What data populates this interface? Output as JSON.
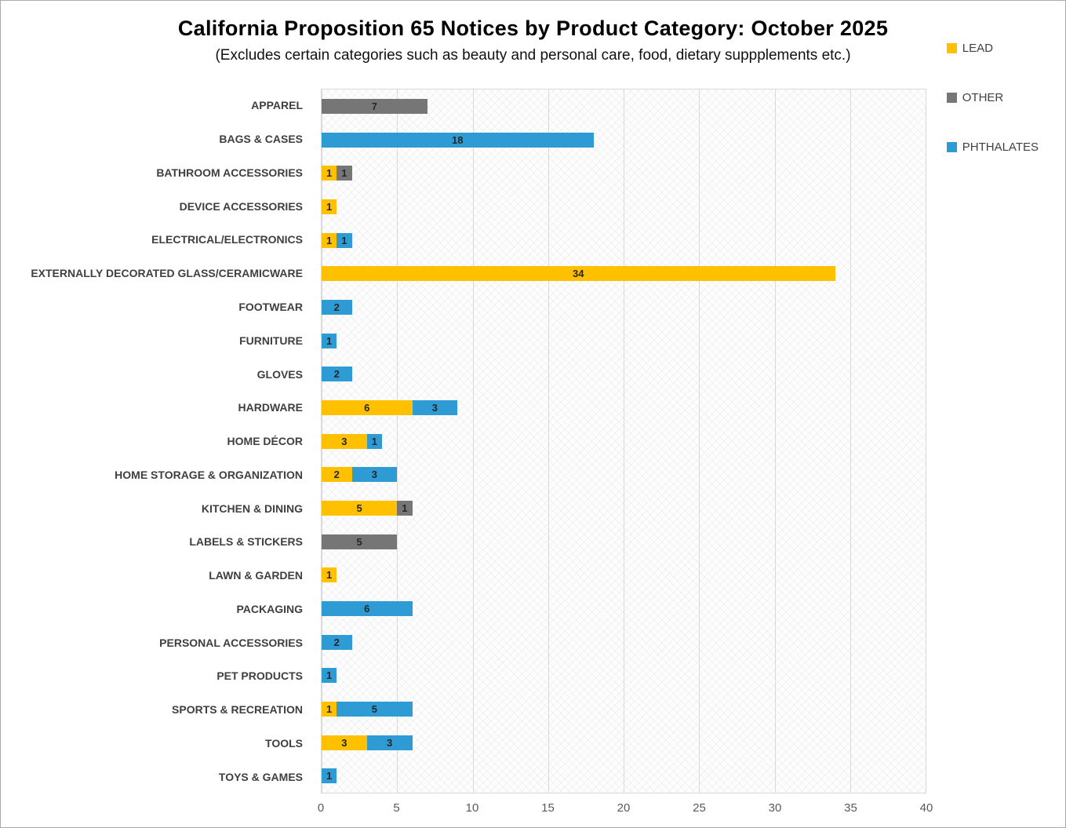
{
  "title": "California Proposition 65 Notices by Product Category: October 2025",
  "subtitle": "(Excludes certain categories such as beauty and personal care, food, dietary suppplements etc.)",
  "colors": {
    "lead": "#FFC000",
    "other": "#767676",
    "phthalates": "#2E9BD5",
    "gridline": "#D9D9D9"
  },
  "legend": [
    {
      "label": "LEAD",
      "color": "#FFC000"
    },
    {
      "label": "OTHER",
      "color": "#767676"
    },
    {
      "label": "PHTHALATES",
      "color": "#2E9BD5"
    }
  ],
  "chart_data": {
    "type": "bar",
    "orientation": "horizontal",
    "stacked": true,
    "title": "California Proposition 65 Notices by Product Category: October 2025",
    "xlabel": "",
    "ylabel": "",
    "xlim": [
      0,
      40
    ],
    "x_ticks": [
      0,
      5,
      10,
      15,
      20,
      25,
      30,
      35,
      40
    ],
    "grid": true,
    "legend_position": "top-right",
    "categories": [
      "APPAREL",
      "BAGS & CASES",
      "BATHROOM ACCESSORIES",
      "DEVICE ACCESSORIES",
      "ELECTRICAL/ELECTRONICS",
      "EXTERNALLY DECORATED GLASS/CERAMICWARE",
      "FOOTWEAR",
      "FURNITURE",
      "GLOVES",
      "HARDWARE",
      "HOME DÉCOR",
      "HOME STORAGE & ORGANIZATION",
      "KITCHEN & DINING",
      "LABELS & STICKERS",
      "LAWN & GARDEN",
      "PACKAGING",
      "PERSONAL ACCESSORIES",
      "PET PRODUCTS",
      "SPORTS & RECREATION",
      "TOOLS",
      "TOYS & GAMES"
    ],
    "series": [
      {
        "name": "LEAD",
        "color": "#FFC000",
        "values": [
          0,
          0,
          1,
          1,
          1,
          34,
          0,
          0,
          0,
          6,
          3,
          2,
          5,
          0,
          1,
          0,
          0,
          0,
          1,
          3,
          0
        ]
      },
      {
        "name": "OTHER",
        "color": "#767676",
        "values": [
          7,
          0,
          1,
          0,
          0,
          0,
          0,
          0,
          0,
          0,
          0,
          0,
          1,
          5,
          0,
          0,
          0,
          0,
          0,
          0,
          0
        ]
      },
      {
        "name": "PHTHALATES",
        "color": "#2E9BD5",
        "values": [
          0,
          18,
          0,
          0,
          1,
          0,
          2,
          1,
          2,
          3,
          1,
          3,
          0,
          0,
          0,
          6,
          2,
          1,
          5,
          3,
          1
        ]
      }
    ]
  }
}
